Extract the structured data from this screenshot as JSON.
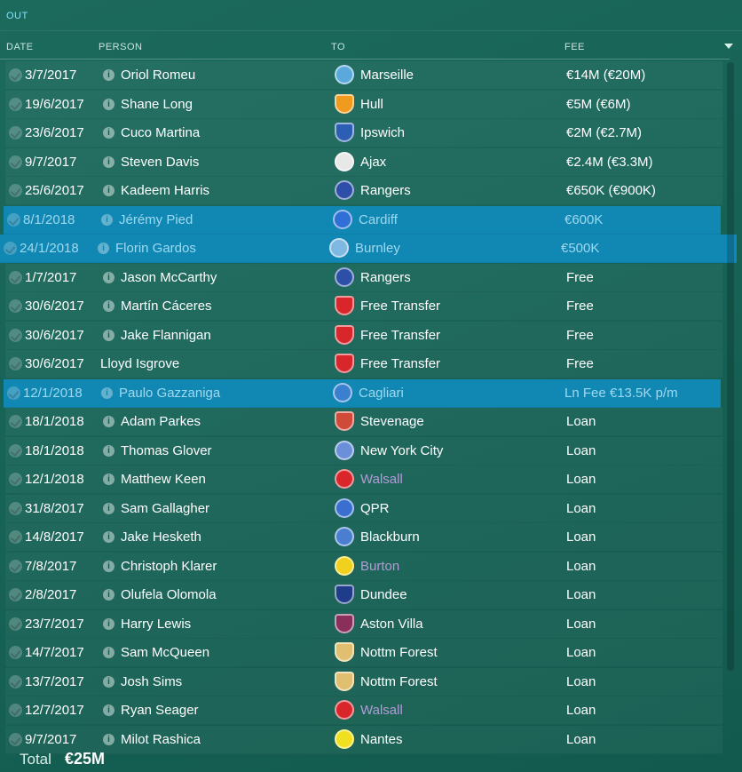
{
  "section": {
    "title": "OUT"
  },
  "columns": {
    "date": "DATE",
    "person": "PERSON",
    "to": "TO",
    "fee": "FEE"
  },
  "rows": [
    {
      "date": "3/7/2017",
      "person": "Oriol Romeu",
      "to": "Marseille",
      "fee": "€14M (€20M)",
      "crest": "#5aa9dc",
      "info": true
    },
    {
      "date": "19/6/2017",
      "person": "Shane Long",
      "to": "Hull",
      "fee": "€5M (€6M)",
      "crest": "#f09a1e",
      "info": true
    },
    {
      "date": "23/6/2017",
      "person": "Cuco Martina",
      "to": "Ipswich",
      "fee": "€2M (€2.7M)",
      "crest": "#2c5fb4",
      "info": true
    },
    {
      "date": "9/7/2017",
      "person": "Steven Davis",
      "to": "Ajax",
      "fee": "€2.4M (€3.3M)",
      "crest": "#e8e8e8",
      "info": true
    },
    {
      "date": "25/6/2017",
      "person": "Kadeem Harris",
      "to": "Rangers",
      "fee": "€650K (€900K)",
      "crest": "#2d4fa8",
      "info": true
    },
    {
      "date": "8/1/2018",
      "person": "Jérémy Pied",
      "to": "Cardiff",
      "fee": "€600K",
      "crest": "#2f6fd6",
      "info": true
    },
    {
      "date": "24/1/2018",
      "person": "Florin Gardos",
      "to": "Burnley",
      "fee": "€500K",
      "crest": "#7fb8e0",
      "info": true
    },
    {
      "date": "1/7/2017",
      "person": "Jason McCarthy",
      "to": "Rangers",
      "fee": "Free",
      "crest": "#2d4fa8",
      "info": true
    },
    {
      "date": "30/6/2017",
      "person": "Martín Cáceres",
      "to": "Free Transfer",
      "fee": "Free",
      "crest": "#d8262a",
      "info": true
    },
    {
      "date": "30/6/2017",
      "person": "Jake Flannigan",
      "to": "Free Transfer",
      "fee": "Free",
      "crest": "#d8262a",
      "info": true
    },
    {
      "date": "30/6/2017",
      "person": "Lloyd Isgrove",
      "to": "Free Transfer",
      "fee": "Free",
      "crest": "#d8262a",
      "info": false
    },
    {
      "date": "12/1/2018",
      "person": "Paulo Gazzaniga",
      "to": "Cagliari",
      "fee": "Ln Fee €13.5K p/m",
      "crest": "#3a7fd0",
      "info": true
    },
    {
      "date": "18/1/2018",
      "person": "Adam Parkes",
      "to": "Stevenage",
      "fee": "Loan",
      "crest": "#d04a3a",
      "info": true
    },
    {
      "date": "18/1/2018",
      "person": "Thomas Glover",
      "to": "New York City",
      "fee": "Loan",
      "crest": "#6b8fd8",
      "info": true
    },
    {
      "date": "12/1/2018",
      "person": "Matthew Keen",
      "to": "Walsall",
      "fee": "Loan",
      "crest": "#d8262a",
      "info": true
    },
    {
      "date": "31/8/2017",
      "person": "Sam Gallagher",
      "to": "QPR",
      "fee": "Loan",
      "crest": "#3a6fd0",
      "info": true
    },
    {
      "date": "14/8/2017",
      "person": "Jake Hesketh",
      "to": "Blackburn",
      "fee": "Loan",
      "crest": "#4a7fd0",
      "info": true
    },
    {
      "date": "7/8/2017",
      "person": "Christoph Klarer",
      "to": "Burton",
      "fee": "Loan",
      "crest": "#f0d21e",
      "info": true
    },
    {
      "date": "2/8/2017",
      "person": "Olufela Olomola",
      "to": "Dundee",
      "fee": "Loan",
      "crest": "#1e3c8a",
      "info": true
    },
    {
      "date": "23/7/2017",
      "person": "Harry Lewis",
      "to": "Aston Villa",
      "fee": "Loan",
      "crest": "#8a2f5a",
      "info": true
    },
    {
      "date": "14/7/2017",
      "person": "Sam McQueen",
      "to": "Nottm Forest",
      "fee": "Loan",
      "crest": "#e0c070",
      "info": true
    },
    {
      "date": "13/7/2017",
      "person": "Josh Sims",
      "to": "Nottm Forest",
      "fee": "Loan",
      "crest": "#e0c070",
      "info": true
    },
    {
      "date": "12/7/2017",
      "person": "Ryan Seager",
      "to": "Walsall",
      "fee": "Loan",
      "crest": "#d8262a",
      "info": true
    },
    {
      "date": "9/7/2017",
      "person": "Milot Rashica",
      "to": "Nantes",
      "fee": "Loan",
      "crest": "#f0e020",
      "info": true
    }
  ],
  "footer": {
    "total_label": "Total",
    "total_value": "€25M"
  }
}
